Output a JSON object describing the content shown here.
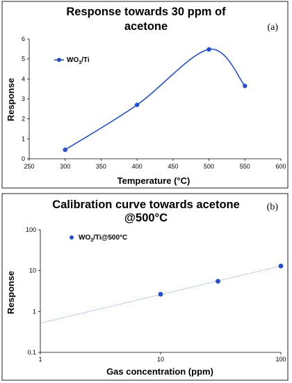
{
  "chart_data": [
    {
      "type": "line",
      "title_line1": "Response towards 30 ppm  of",
      "title_line2": "acetone",
      "panel_label": "(a)",
      "xlabel": "Temperature (°C)",
      "ylabel": "Response",
      "xlim": [
        250,
        600
      ],
      "ylim": [
        0,
        6
      ],
      "xticks": [
        250,
        300,
        350,
        400,
        450,
        500,
        550,
        600
      ],
      "yticks": [
        0,
        1,
        2,
        3,
        4,
        5,
        6
      ],
      "legend_position": "top-left",
      "grid": false,
      "series": [
        {
          "name_main": "WO",
          "name_sub": "3",
          "name_tail": "/Ti",
          "color": "#1f4fd6",
          "smooth": true,
          "x": [
            300,
            400,
            500,
            550
          ],
          "y": [
            0.45,
            2.7,
            5.48,
            3.65
          ]
        }
      ]
    },
    {
      "type": "scatter",
      "title_line1": "Calibration curve towards acetone",
      "title_line2": "@500°C",
      "panel_label": "(b)",
      "xlabel": "Gas concentration (ppm)",
      "ylabel": "Response",
      "xscale": "log",
      "yscale": "log",
      "xlim": [
        1,
        100
      ],
      "ylim": [
        0.1,
        100
      ],
      "xticks": [
        "1",
        "10",
        "100"
      ],
      "yticks": [
        "0.1",
        "1",
        "10",
        "100"
      ],
      "legend_position": "top-left",
      "grid": false,
      "series": [
        {
          "name_main": "WO",
          "name_sub": "3",
          "name_tail": "/Ti@500°C",
          "color": "#1f4fd6",
          "x": [
            10,
            30,
            100
          ],
          "y": [
            2.65,
            5.5,
            13.0
          ]
        }
      ],
      "trendline": {
        "color": "#7fa2dd",
        "x": [
          1,
          100
        ],
        "y": [
          0.52,
          13.0
        ]
      }
    }
  ]
}
